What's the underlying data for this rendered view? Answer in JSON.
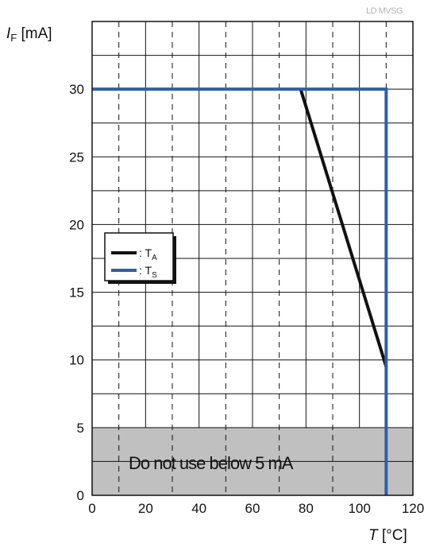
{
  "watermark": "LD MVSG",
  "colors": {
    "ta_line": "#111111",
    "ts_line": "#2f5fa8",
    "restricted_fill": "#c0c0c0",
    "grid": "#111111"
  },
  "chart_data": {
    "type": "line",
    "y_axis": {
      "symbol": "I",
      "subscript": "F",
      "unit": " [mA]",
      "range": [
        0,
        35
      ],
      "ticks": [
        0,
        5,
        10,
        15,
        20,
        25,
        30
      ]
    },
    "x_axis": {
      "symbol": "T",
      "unit": " [°C]",
      "range": [
        0,
        120
      ],
      "ticks": [
        0,
        20,
        40,
        60,
        80,
        100,
        120
      ]
    },
    "grid": {
      "x_major_dashed": [
        10,
        30,
        50,
        70,
        90,
        110
      ],
      "x_solid": [
        20,
        40,
        60,
        80,
        100
      ],
      "y_every": 2.5
    },
    "series": [
      {
        "name": "T",
        "subscript": "A",
        "legend_prefix": ": ",
        "x": [
          78,
          110
        ],
        "y": [
          30,
          9.5
        ]
      },
      {
        "name": "T",
        "subscript": "S",
        "legend_prefix": ": ",
        "x": [
          0,
          110,
          110
        ],
        "y": [
          30,
          30,
          0
        ]
      }
    ],
    "restricted_region": {
      "y_from": 0,
      "y_to": 5,
      "label": "Do not use below 5 mA"
    }
  }
}
